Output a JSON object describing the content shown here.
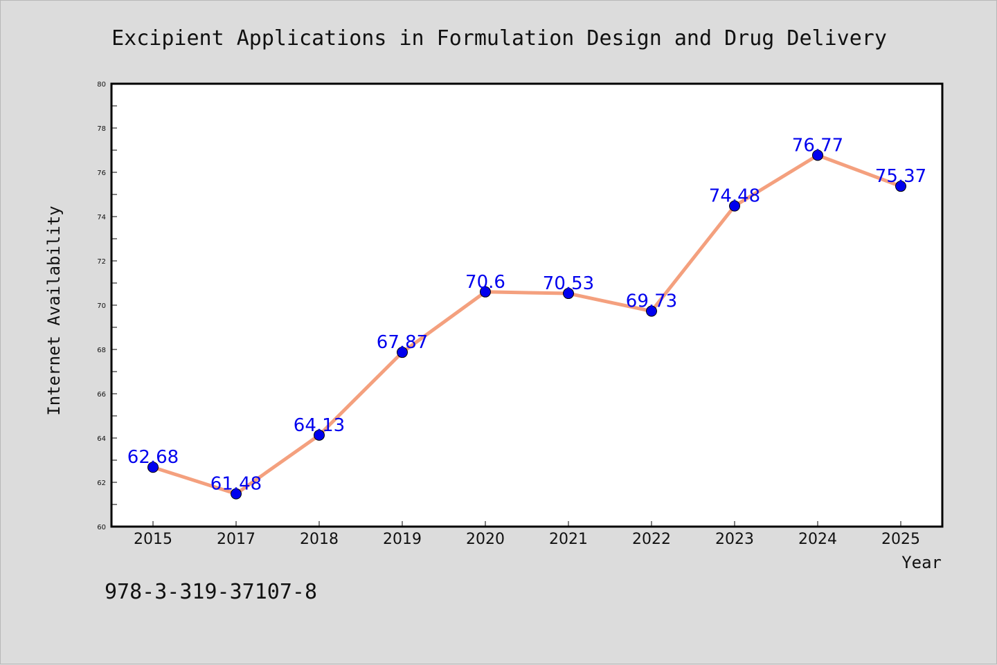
{
  "chart_data": {
    "type": "line",
    "title": "Excipient Applications in Formulation Design and Drug Delivery",
    "xlabel": "Year",
    "ylabel": "Internet Availability",
    "categories": [
      "2015",
      "2017",
      "2018",
      "2019",
      "2020",
      "2021",
      "2022",
      "2023",
      "2024",
      "2025"
    ],
    "series": [
      {
        "values": [
          62.68,
          61.48,
          64.13,
          67.87,
          70.6,
          70.53,
          69.73,
          74.48,
          76.77,
          75.37
        ],
        "labels": [
          "62.68",
          "61.48",
          "64.13",
          "67.87",
          "70.6",
          "70.53",
          "69.73",
          "74.48",
          "76.77",
          "75.37"
        ]
      }
    ],
    "ylim": [
      60,
      80
    ],
    "yticks": [
      "60",
      "62",
      "64",
      "66",
      "68",
      "70",
      "72",
      "74",
      "76",
      "78",
      "80"
    ],
    "grid": false,
    "colors": {
      "line": "#f4a07e",
      "marker": "#0000ee",
      "label": "#0000ee",
      "plot_bg": "#ffffff",
      "page_bg": "#dcdcdc"
    }
  },
  "footer": {
    "code": "978-3-319-37107-8"
  }
}
